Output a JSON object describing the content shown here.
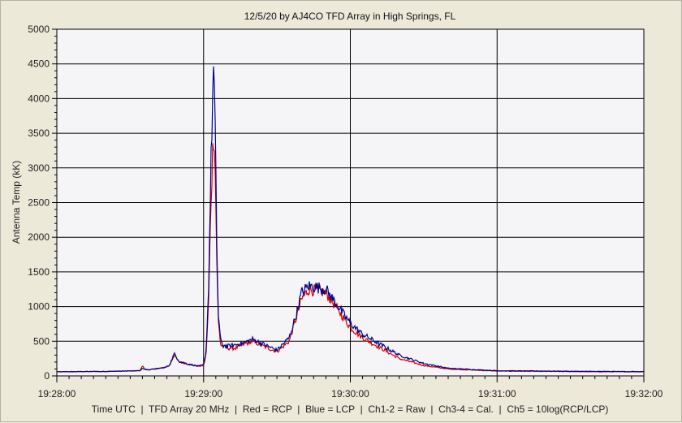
{
  "chart_data": {
    "type": "line",
    "title": "12/5/20  by  AJ4CO TFD Array  in  High Springs, FL",
    "ylabel": "Antenna Temp (kK)",
    "xlabel": "Time UTC  |  TFD Array 20 MHz  |  Red = RCP  |  Blue = LCP  |  Ch1-2 = Raw  |  Ch3-4 = Cal.  |  Ch5 = 10log(RCP/LCP)",
    "ylim": [
      0,
      5000
    ],
    "yticks": [
      "0",
      "500",
      "1000",
      "1500",
      "2000",
      "2500",
      "3000",
      "3500",
      "4000",
      "4500",
      "5000"
    ],
    "xlim_seconds": [
      0,
      240
    ],
    "xticks": [
      "19:28:00",
      "19:29:00",
      "19:30:00",
      "19:31:00",
      "19:32:00"
    ],
    "grid": true,
    "plot_background": "#f5f5f8",
    "series": [
      {
        "name": "RCP",
        "color": "#cc0000",
        "t_seconds": [
          0,
          20,
          34,
          35,
          36,
          38,
          44,
          46,
          48,
          50,
          55,
          58,
          60,
          61,
          62,
          63,
          64,
          64.5,
          65,
          65.5,
          66,
          67,
          68,
          70,
          73,
          76,
          80,
          85,
          90,
          95,
          98,
          100,
          103,
          106,
          110,
          113,
          116,
          120,
          125,
          130,
          135,
          140,
          150,
          160,
          180,
          200,
          220,
          240
        ],
        "values": [
          60,
          65,
          75,
          150,
          90,
          90,
          120,
          150,
          300,
          200,
          160,
          140,
          150,
          300,
          1000,
          2500,
          3500,
          3400,
          2500,
          1500,
          800,
          450,
          420,
          400,
          400,
          450,
          500,
          420,
          350,
          500,
          850,
          1100,
          1250,
          1230,
          1200,
          1050,
          900,
          700,
          550,
          450,
          350,
          250,
          150,
          100,
          70,
          65,
          60,
          60
        ]
      },
      {
        "name": "LCP",
        "color": "#00008b",
        "t_seconds": [
          0,
          20,
          34,
          35,
          36,
          38,
          44,
          46,
          48,
          50,
          55,
          58,
          60,
          61,
          62,
          63,
          64,
          64.5,
          65,
          65.5,
          66,
          67,
          68,
          70,
          73,
          76,
          80,
          85,
          90,
          95,
          98,
          100,
          103,
          106,
          110,
          113,
          116,
          120,
          125,
          130,
          135,
          140,
          150,
          160,
          180,
          200,
          220,
          240
        ],
        "values": [
          60,
          65,
          75,
          110,
          95,
          90,
          120,
          150,
          320,
          210,
          160,
          140,
          160,
          350,
          1200,
          3000,
          4450,
          4000,
          2900,
          1700,
          900,
          500,
          440,
          430,
          450,
          470,
          530,
          450,
          370,
          550,
          900,
          1200,
          1300,
          1280,
          1250,
          1100,
          950,
          760,
          600,
          500,
          400,
          300,
          180,
          110,
          75,
          70,
          65,
          62
        ]
      }
    ]
  }
}
